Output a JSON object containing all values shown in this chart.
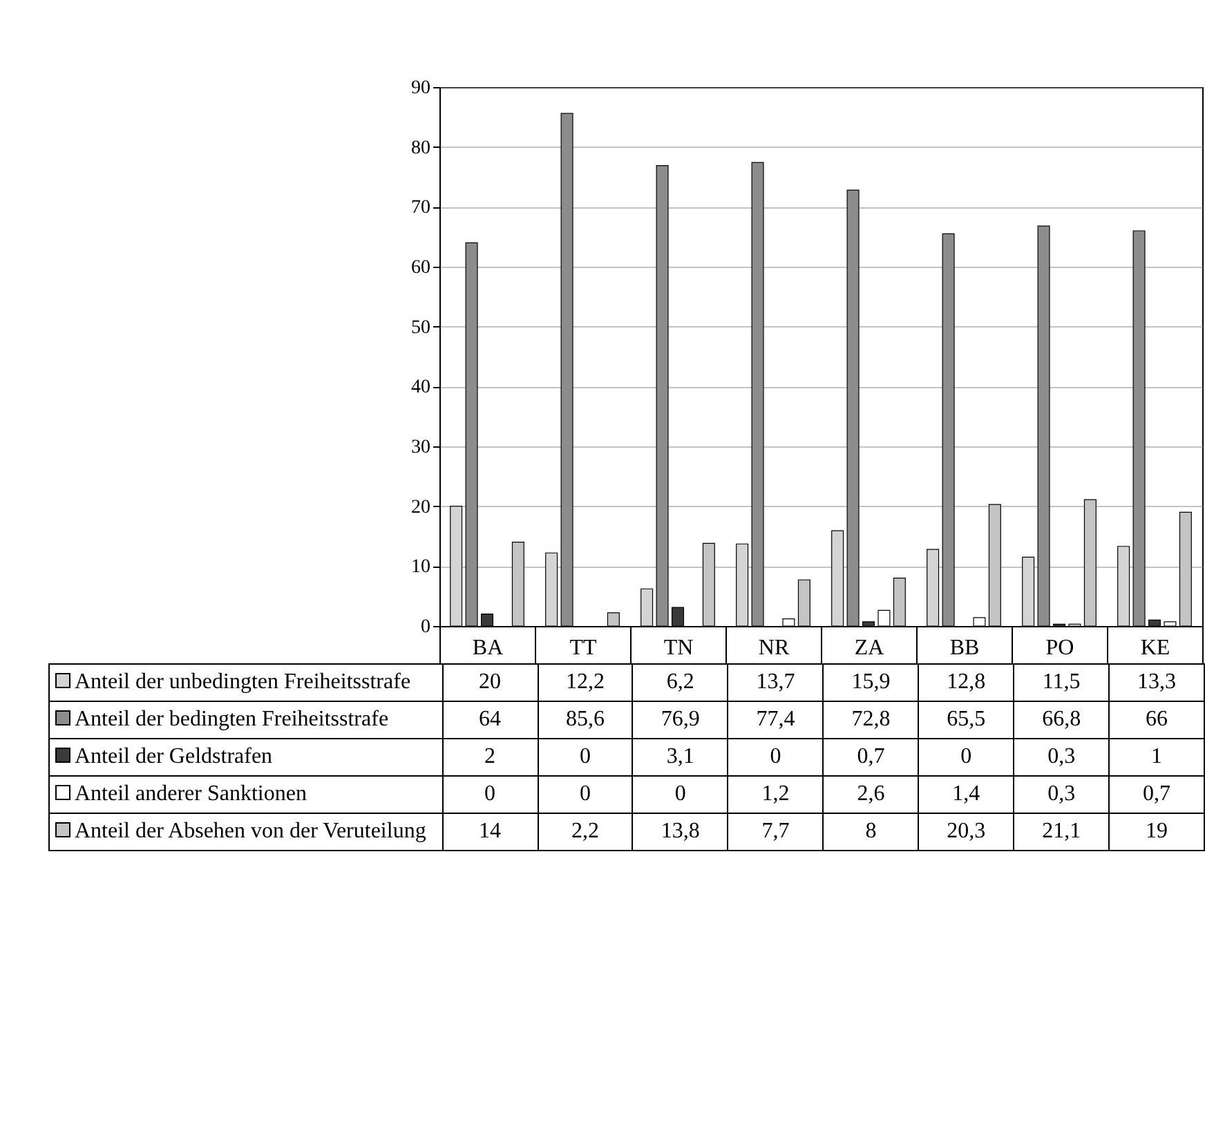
{
  "chart_data": {
    "type": "bar",
    "categories": [
      "BA",
      "TT",
      "TN",
      "NR",
      "ZA",
      "BB",
      "PO",
      "KE"
    ],
    "series": [
      {
        "name": "Anteil der unbedingten Freiheitsstrafe",
        "color": "#d4d4d4",
        "values": [
          20,
          12.2,
          6.2,
          13.7,
          15.9,
          12.8,
          11.5,
          13.3
        ],
        "value_labels": [
          "20",
          "12,2",
          "6,2",
          "13,7",
          "15,9",
          "12,8",
          "11,5",
          "13,3"
        ]
      },
      {
        "name": "Anteil der bedingten Freiheitsstrafe",
        "color": "#8c8c8c",
        "values": [
          64,
          85.6,
          76.9,
          77.4,
          72.8,
          65.5,
          66.8,
          66
        ],
        "value_labels": [
          "64",
          "85,6",
          "76,9",
          "77,4",
          "72,8",
          "65,5",
          "66,8",
          "66"
        ]
      },
      {
        "name": "Anteil der Geldstrafen",
        "color": "#3a3a3a",
        "values": [
          2,
          0,
          3.1,
          0,
          0.7,
          0,
          0.3,
          1
        ],
        "value_labels": [
          "2",
          "0",
          "3,1",
          "0",
          "0,7",
          "0",
          "0,3",
          "1"
        ]
      },
      {
        "name": "Anteil anderer Sanktionen",
        "color": "#ffffff",
        "values": [
          0,
          0,
          0,
          1.2,
          2.6,
          1.4,
          0.3,
          0.7
        ],
        "value_labels": [
          "0",
          "0",
          "0",
          "1,2",
          "2,6",
          "1,4",
          "0,3",
          "0,7"
        ]
      },
      {
        "name": "Anteil der Absehen von der Veruteilung",
        "color": "#c4c4c4",
        "values": [
          14,
          2.2,
          13.8,
          7.7,
          8,
          20.3,
          21.1,
          19
        ],
        "value_labels": [
          "14",
          "2,2",
          "13,8",
          "7,7",
          "8",
          "20,3",
          "21,1",
          "19"
        ]
      }
    ],
    "ylim": [
      0,
      90
    ],
    "yticks": [
      0,
      10,
      20,
      30,
      40,
      50,
      60,
      70,
      80,
      90
    ],
    "grid": "y",
    "legend": "bottom left"
  }
}
